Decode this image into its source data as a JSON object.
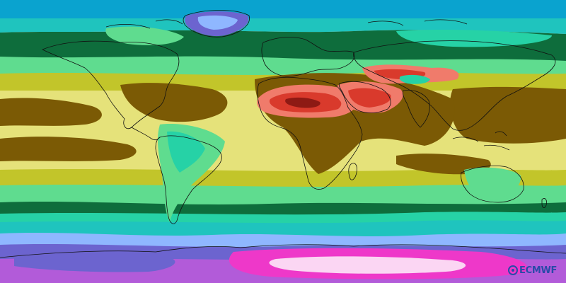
{
  "logo": {
    "text": "ECMWF",
    "icon": "ecmwf-globe-icon",
    "color": "#2a4aa8"
  },
  "colors": {
    "ocean_top": "#0aa3cf",
    "polar_purple": "#b25bd9",
    "magenta": "#ee38c9",
    "pink_white": "#fbd6f3",
    "blue_violet": "#6c64cf",
    "light_blue": "#8fb7ff",
    "cyan": "#1fc4be",
    "teal": "#26d2a6",
    "green_light": "#5fdc8f",
    "green_dark": "#0e6d3c",
    "yellow_green": "#c2c52a",
    "pale_yellow": "#e5e27a",
    "brown": "#7b5a05",
    "salmon": "#f07b6b",
    "red": "#d93a2c",
    "dark_red": "#8e1a14"
  }
}
